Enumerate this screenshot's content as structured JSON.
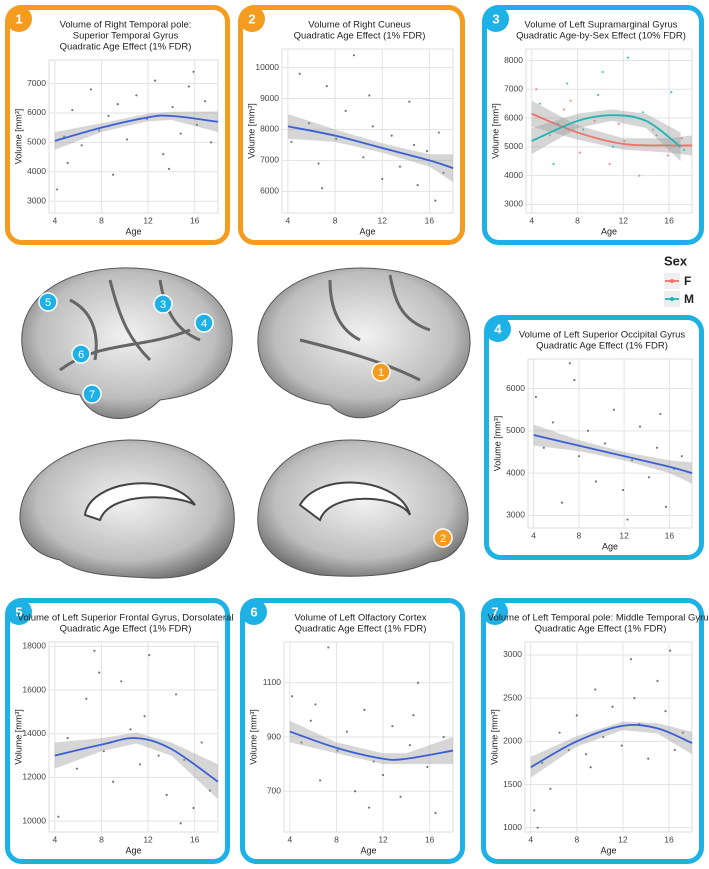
{
  "chart_data": [
    {
      "type": "scatter",
      "panel": "1",
      "border_color": "#f39c1f",
      "title": [
        "Volume of Right Temporal pole:",
        "Superior Temporal Gyrus",
        "Quadratic Age Effect (1% FDR)"
      ],
      "xlabel": "Age",
      "ylabel": "Volume [mm³]",
      "xlim": [
        3.5,
        18
      ],
      "xticks": [
        4,
        8,
        12,
        16
      ],
      "ylim": [
        2600,
        7800
      ],
      "yticks": [
        3000,
        4000,
        5000,
        6000,
        7000
      ],
      "grid": true,
      "series": [
        {
          "color": "#3c5fd6",
          "points": {
            "x": [
              4.2,
              4.8,
              5.5,
              6.3,
              7.1,
              7.8,
              8.6,
              9.4,
              10.2,
              11.0,
              11.9,
              12.6,
              13.3,
              14.1,
              14.8,
              15.5,
              16.2,
              16.9,
              17.4,
              5.1,
              9.0,
              13.8,
              15.9
            ],
            "y": [
              3400,
              5200,
              6100,
              4900,
              6800,
              5400,
              5900,
              6300,
              5100,
              6600,
              5800,
              7100,
              4600,
              6200,
              5300,
              6900,
              5600,
              6400,
              5000,
              4300,
              3900,
              4100,
              7400
            ]
          },
          "fit": {
            "x": [
              4,
              8,
              12,
              14,
              18
            ],
            "y": [
              5050,
              5500,
              5850,
              5900,
              5700
            ],
            "lower": [
              4750,
              5350,
              5720,
              5760,
              5350
            ],
            "upper": [
              5350,
              5650,
              5980,
              6040,
              6050
            ]
          }
        }
      ]
    },
    {
      "type": "scatter",
      "panel": "2",
      "border_color": "#f39c1f",
      "title": [
        "Volume of Right Cuneus",
        "Quadratic Age Effect (1% FDR)"
      ],
      "xlabel": "Age",
      "ylabel": "Volume [mm³]",
      "xlim": [
        3.5,
        18
      ],
      "xticks": [
        4,
        8,
        12,
        16
      ],
      "ylim": [
        5300,
        10600
      ],
      "yticks": [
        6000,
        7000,
        8000,
        9000,
        10000
      ],
      "grid": true,
      "series": [
        {
          "color": "#3c5fd6",
          "points": {
            "x": [
              4.3,
              5.0,
              5.8,
              6.6,
              7.3,
              8.1,
              8.9,
              9.6,
              10.4,
              11.2,
              12.0,
              12.8,
              13.5,
              14.3,
              15.0,
              15.8,
              16.5,
              17.2,
              6.9,
              10.9,
              14.7,
              16.8
            ],
            "y": [
              7600,
              9800,
              8200,
              6900,
              9400,
              7700,
              8600,
              10400,
              7100,
              8100,
              6400,
              7800,
              6800,
              8900,
              6200,
              7300,
              5700,
              6600,
              6100,
              9100,
              7500,
              7900
            ]
          },
          "fit": {
            "x": [
              4,
              8,
              12,
              16,
              18
            ],
            "y": [
              8100,
              7800,
              7400,
              7000,
              6750
            ],
            "lower": [
              7700,
              7600,
              7250,
              6800,
              6300
            ],
            "upper": [
              8500,
              8000,
              7550,
              7200,
              7200
            ]
          }
        }
      ]
    },
    {
      "type": "scatter",
      "panel": "3",
      "border_color": "#1eb1e6",
      "title": [
        "Volume of Left Supramarginal Gyrus",
        "Quadratic Age-by-Sex Effect (10% FDR)"
      ],
      "xlabel": "Age",
      "ylabel": "Volume [mm³]",
      "xlim": [
        3.5,
        18
      ],
      "xticks": [
        4,
        8,
        12,
        16
      ],
      "ylim": [
        2700,
        8400
      ],
      "yticks": [
        3000,
        4000,
        5000,
        6000,
        7000,
        8000
      ],
      "grid": true,
      "legend_title": "Sex",
      "series": [
        {
          "name": "F",
          "color": "#f07167",
          "points": {
            "x": [
              4.4,
              5.6,
              6.8,
              8.2,
              9.5,
              10.8,
              12.1,
              13.4,
              14.6,
              15.9,
              17.1,
              7.4,
              11.6
            ],
            "y": [
              7000,
              5400,
              6300,
              4800,
              5900,
              4400,
              5200,
              4000,
              5600,
              4700,
              5300,
              6600,
              5800
            ]
          },
          "fit": {
            "x": [
              4,
              8,
              12,
              16,
              18
            ],
            "y": [
              6150,
              5500,
              5100,
              5050,
              5050
            ],
            "lower": [
              5700,
              5250,
              4900,
              4800,
              4700
            ],
            "upper": [
              6600,
              5750,
              5300,
              5300,
              5400
            ]
          }
        },
        {
          "name": "M",
          "color": "#1fb5b5",
          "points": {
            "x": [
              4.7,
              5.9,
              7.1,
              8.5,
              9.8,
              11.1,
              12.4,
              13.7,
              14.9,
              16.2,
              17.3,
              6.3,
              10.2
            ],
            "y": [
              6500,
              4400,
              7200,
              5600,
              6800,
              5000,
              8100,
              6200,
              5400,
              6900,
              4900,
              5800,
              7600
            ]
          },
          "fit": {
            "x": [
              4,
              8,
              11,
              14,
              17
            ],
            "y": [
              5200,
              5900,
              6100,
              5900,
              5000
            ],
            "lower": [
              4750,
              5650,
              5900,
              5650,
              4500
            ],
            "upper": [
              5650,
              6150,
              6300,
              6150,
              5500
            ]
          }
        }
      ]
    },
    {
      "type": "scatter",
      "panel": "4",
      "border_color": "#1eb1e6",
      "title": [
        "Volume of Left Superior Occipital Gyrus",
        "Quadratic Age Effect (1% FDR)"
      ],
      "xlabel": "Age",
      "ylabel": "Volume [mm³]",
      "xlim": [
        3.5,
        18
      ],
      "xticks": [
        4,
        8,
        12,
        16
      ],
      "ylim": [
        2700,
        6700
      ],
      "yticks": [
        3000,
        4000,
        5000,
        6000
      ],
      "grid": true,
      "series": [
        {
          "color": "#3c5fd6",
          "points": {
            "x": [
              4.2,
              4.9,
              5.7,
              6.5,
              7.2,
              8.0,
              8.8,
              9.5,
              10.3,
              11.1,
              11.9,
              12.7,
              13.4,
              14.2,
              14.9,
              15.7,
              16.4,
              17.1,
              7.6,
              12.3,
              15.2
            ],
            "y": [
              5800,
              4600,
              5200,
              3300,
              6600,
              4400,
              5000,
              3800,
              4700,
              5500,
              3600,
              4300,
              5100,
              3900,
              4600,
              3200,
              4100,
              4400,
              6200,
              2900,
              5400
            ]
          },
          "fit": {
            "x": [
              4,
              8,
              12,
              16,
              18
            ],
            "y": [
              4900,
              4650,
              4400,
              4150,
              4000
            ],
            "lower": [
              4650,
              4520,
              4300,
              4000,
              3750
            ],
            "upper": [
              5150,
              4780,
              4500,
              4300,
              4250
            ]
          }
        }
      ]
    },
    {
      "type": "scatter",
      "panel": "5",
      "border_color": "#1eb1e6",
      "title": [
        "Volume of Left Superior Frontal Gyrus, Dorsolateral",
        "Quadratic Age Effect (1% FDR)"
      ],
      "xlabel": "Age",
      "ylabel": "Volume [mm³]",
      "xlim": [
        3.5,
        18
      ],
      "xticks": [
        4,
        8,
        12,
        16
      ],
      "ylim": [
        9500,
        18200
      ],
      "yticks": [
        10000,
        12000,
        14000,
        16000,
        18000
      ],
      "grid": true,
      "series": [
        {
          "color": "#3c5fd6",
          "points": {
            "x": [
              4.3,
              5.1,
              5.9,
              6.7,
              7.4,
              8.2,
              9.0,
              9.7,
              10.5,
              11.3,
              12.1,
              12.9,
              13.6,
              14.4,
              15.1,
              15.9,
              16.6,
              17.3,
              7.8,
              11.7,
              14.8
            ],
            "y": [
              10200,
              13800,
              12400,
              15600,
              17800,
              13200,
              11800,
              16400,
              14200,
              12600,
              17600,
              13000,
              11200,
              15800,
              12800,
              10600,
              13600,
              11400,
              16800,
              14800,
              9900
            ]
          },
          "fit": {
            "x": [
              4,
              8,
              11,
              14,
              18
            ],
            "y": [
              13000,
              13500,
              13800,
              13300,
              11800
            ],
            "lower": [
              12400,
              13200,
              13550,
              13000,
              11000
            ],
            "upper": [
              13600,
              13800,
              14050,
              13600,
              12600
            ]
          }
        }
      ]
    },
    {
      "type": "scatter",
      "panel": "6",
      "border_color": "#1eb1e6",
      "title": [
        "Volume of Left Olfactory Cortex",
        "Quadratic Age Effect (1% FDR)"
      ],
      "xlabel": "Age",
      "ylabel": "Volume [mm³]",
      "xlim": [
        3.5,
        18
      ],
      "xticks": [
        4,
        8,
        12,
        16
      ],
      "ylim": [
        550,
        1250
      ],
      "yticks": [
        700,
        900,
        1100
      ],
      "grid": true,
      "series": [
        {
          "color": "#3c5fd6",
          "points": {
            "x": [
              4.2,
              5.0,
              5.8,
              6.6,
              7.3,
              8.1,
              8.9,
              9.6,
              10.4,
              11.2,
              12.0,
              12.8,
              13.5,
              14.3,
              15.0,
              15.8,
              16.5,
              17.2,
              6.2,
              10.8,
              14.6
            ],
            "y": [
              1050,
              880,
              960,
              740,
              1230,
              850,
              920,
              700,
              1000,
              810,
              760,
              940,
              680,
              870,
              1100,
              790,
              620,
              900,
              1020,
              640,
              980
            ]
          },
          "fit": {
            "x": [
              4,
              8,
              12,
              14,
              18
            ],
            "y": [
              920,
              860,
              820,
              820,
              850
            ],
            "lower": [
              880,
              840,
              800,
              800,
              800
            ],
            "upper": [
              960,
              880,
              840,
              840,
              900
            ]
          }
        }
      ]
    },
    {
      "type": "scatter",
      "panel": "7",
      "border_color": "#1eb1e6",
      "title": [
        "Volume of Left Temporal pole: Middle Temporal Gyrus",
        "Quadratic Age Effect (1% FDR)"
      ],
      "xlabel": "Age",
      "ylabel": "Volume [mm³]",
      "xlim": [
        3.5,
        18
      ],
      "xticks": [
        4,
        8,
        12,
        16
      ],
      "ylim": [
        950,
        3150
      ],
      "yticks": [
        1000,
        1500,
        2000,
        2500,
        3000
      ],
      "grid": true,
      "series": [
        {
          "color": "#3c5fd6",
          "points": {
            "x": [
              4.3,
              5.0,
              5.7,
              6.5,
              7.3,
              8.0,
              8.8,
              9.6,
              10.3,
              11.1,
              11.9,
              12.7,
              13.4,
              14.2,
              15.0,
              15.7,
              16.5,
              17.2,
              4.6,
              9.2,
              13.0,
              16.1
            ],
            "y": [
              1200,
              1750,
              1450,
              2100,
              1900,
              2300,
              1850,
              2600,
              2050,
              2400,
              1950,
              2950,
              2200,
              1800,
              2700,
              2350,
              1900,
              2100,
              1000,
              1700,
              2500,
              3050
            ]
          },
          "fit": {
            "x": [
              4,
              8,
              12,
              15,
              18
            ],
            "y": [
              1700,
              2000,
              2180,
              2150,
              1980
            ],
            "lower": [
              1580,
              1940,
              2130,
              2090,
              1850
            ],
            "upper": [
              1820,
              2060,
              2230,
              2210,
              2110
            ]
          }
        }
      ]
    }
  ]
}
